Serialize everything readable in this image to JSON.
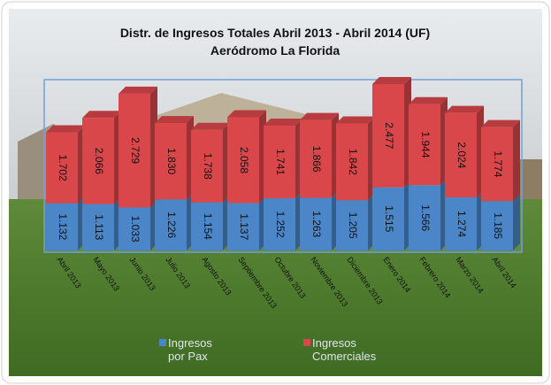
{
  "chart_data": {
    "type": "bar",
    "stacked": true,
    "title": "Distr. de Ingresos Totales  Abril 2013 -  Abril 2014 (UF)",
    "subtitle": "Aeródromo La Florida",
    "categories": [
      "Abril 2013",
      "Mayo 2013",
      "Junio 2013",
      "Julio 2013",
      "Agosto 2013",
      "Septiembre 2013",
      "Octubre 2013",
      "Noviembre 2013",
      "Diciembre 2013",
      "Enero 2014",
      "Febrero 2014",
      "Marzo 2014",
      "Abril 2014"
    ],
    "series": [
      {
        "name": "Ingresos por Pax",
        "color": "#4a86c8",
        "values": [
          1132,
          1113,
          1033,
          1226,
          1154,
          1137,
          1252,
          1263,
          1205,
          1515,
          1566,
          1274,
          1185
        ],
        "value_labels": [
          "1.132",
          "1.113",
          "1.033",
          "1.226",
          "1.154",
          "1.137",
          "1.252",
          "1.263",
          "1.205",
          "1.515",
          "1.566",
          "1.274",
          "1.185"
        ]
      },
      {
        "name": "Ingresos Comerciales",
        "color": "#d9474a",
        "values": [
          1702,
          2066,
          2729,
          1830,
          1738,
          2058,
          1741,
          1866,
          1842,
          2477,
          1944,
          2024,
          1774
        ],
        "value_labels": [
          "1.702",
          "2.066",
          "2.729",
          "1.830",
          "1.738",
          "2.058",
          "1.741",
          "1.866",
          "1.842",
          "2.477",
          "1.944",
          "2.024",
          "1.774"
        ]
      }
    ]
  }
}
